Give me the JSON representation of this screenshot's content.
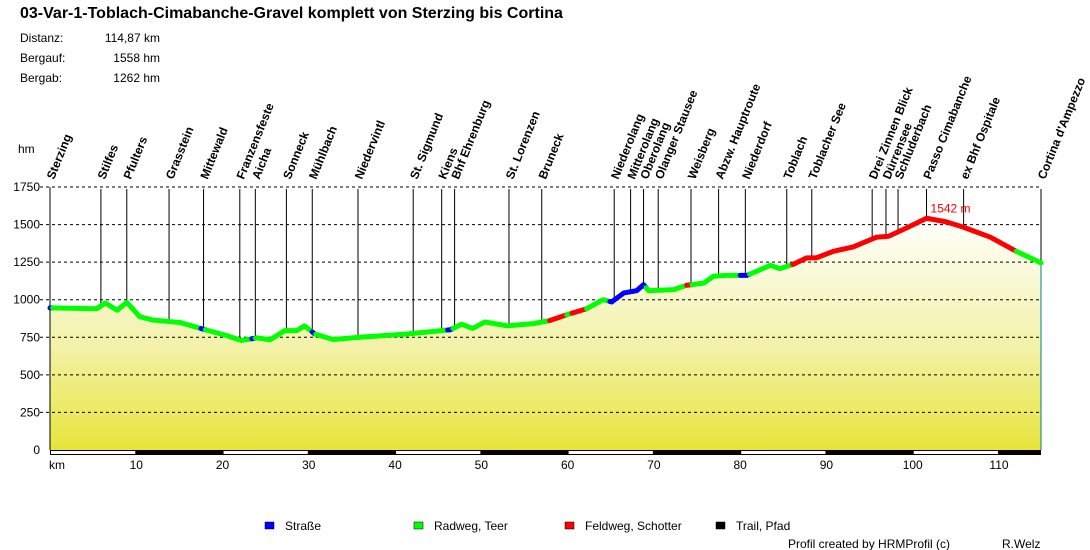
{
  "header": {
    "title": "03-Var-1-Toblach-Cimabanche-Gravel komplett von Sterzing bis Cortina",
    "stats": [
      {
        "label": "Distanz:",
        "value": "114,87 km"
      },
      {
        "label": "Bergauf:",
        "value": "1558 hm"
      },
      {
        "label": "Bergab:",
        "value": "1262 hm"
      }
    ]
  },
  "footer": {
    "credit": "Profil created by HRMProfil (c)",
    "author": "R.Welz"
  },
  "chart_data": {
    "type": "area",
    "xlabel": "km",
    "ylabel": "hm",
    "xlim": [
      0,
      114.87
    ],
    "ylim": [
      0,
      1750
    ],
    "xticks": [
      10,
      20,
      30,
      40,
      50,
      60,
      70,
      80,
      90,
      100,
      110
    ],
    "yticks": [
      0,
      250,
      500,
      750,
      1000,
      1250,
      1500,
      1750
    ],
    "grid": "horizontal-dashed",
    "legend_position": "bottom",
    "max_annotation": {
      "km": 101.6,
      "value": 1542,
      "label": "1542 m"
    },
    "surfaces": [
      {
        "key": "strasse",
        "name": "Straße",
        "color": "#0000ff"
      },
      {
        "key": "radweg",
        "name": "Radweg, Teer",
        "color": "#00ff00"
      },
      {
        "key": "feldweg",
        "name": "Feldweg, Schotter",
        "color": "#ff0000"
      },
      {
        "key": "trail",
        "name": "Trail, Pfad",
        "color": "#000000"
      }
    ],
    "profile": [
      [
        0,
        946
      ],
      [
        5.4,
        940
      ],
      [
        6.4,
        978
      ],
      [
        7.8,
        930
      ],
      [
        8.9,
        983
      ],
      [
        10.4,
        887
      ],
      [
        11.9,
        865
      ],
      [
        15.1,
        848
      ],
      [
        17.7,
        805
      ],
      [
        20.5,
        761
      ],
      [
        22.2,
        729
      ],
      [
        24.0,
        746
      ],
      [
        25.5,
        733
      ],
      [
        27.2,
        794
      ],
      [
        28.6,
        794
      ],
      [
        29.5,
        826
      ],
      [
        30.7,
        772
      ],
      [
        32.8,
        735
      ],
      [
        35.9,
        750
      ],
      [
        41.4,
        772
      ],
      [
        46.4,
        800
      ],
      [
        47.7,
        837
      ],
      [
        49.0,
        809
      ],
      [
        50.4,
        852
      ],
      [
        53.0,
        826
      ],
      [
        56.0,
        841
      ],
      [
        57.9,
        861
      ],
      [
        59.9,
        900
      ],
      [
        62.2,
        940
      ],
      [
        64.1,
        1000
      ],
      [
        65.1,
        985
      ],
      [
        66.5,
        1045
      ],
      [
        68.0,
        1060
      ],
      [
        68.8,
        1100
      ],
      [
        69.4,
        1060
      ],
      [
        72.3,
        1067
      ],
      [
        73.8,
        1096
      ],
      [
        75.8,
        1111
      ],
      [
        76.9,
        1156
      ],
      [
        78.5,
        1162
      ],
      [
        80.8,
        1162
      ],
      [
        83.5,
        1229
      ],
      [
        84.6,
        1207
      ],
      [
        86.1,
        1234
      ],
      [
        87.7,
        1278
      ],
      [
        88.8,
        1278
      ],
      [
        90.8,
        1322
      ],
      [
        93.1,
        1351
      ],
      [
        95.8,
        1416
      ],
      [
        97.2,
        1422
      ],
      [
        99.3,
        1478
      ],
      [
        101.6,
        1542
      ],
      [
        103.9,
        1518
      ],
      [
        105.9,
        1482
      ],
      [
        109.0,
        1416
      ],
      [
        112.0,
        1322
      ],
      [
        114.87,
        1245
      ]
    ],
    "segments": [
      {
        "from": 0,
        "to": 0.3,
        "surface": "strasse"
      },
      {
        "from": 0.3,
        "to": 17.5,
        "surface": "radweg"
      },
      {
        "from": 17.5,
        "to": 18.0,
        "surface": "strasse"
      },
      {
        "from": 18.0,
        "to": 23.4,
        "surface": "radweg"
      },
      {
        "from": 23.4,
        "to": 23.8,
        "surface": "strasse"
      },
      {
        "from": 23.8,
        "to": 30.4,
        "surface": "radweg"
      },
      {
        "from": 30.4,
        "to": 30.8,
        "surface": "strasse"
      },
      {
        "from": 30.8,
        "to": 46.1,
        "surface": "radweg"
      },
      {
        "from": 46.1,
        "to": 46.7,
        "surface": "strasse"
      },
      {
        "from": 46.7,
        "to": 57.9,
        "surface": "radweg"
      },
      {
        "from": 57.9,
        "to": 59.9,
        "surface": "feldweg"
      },
      {
        "from": 59.9,
        "to": 60.5,
        "surface": "radweg"
      },
      {
        "from": 60.5,
        "to": 62.2,
        "surface": "feldweg"
      },
      {
        "from": 62.2,
        "to": 64.9,
        "surface": "radweg"
      },
      {
        "from": 64.9,
        "to": 69.1,
        "surface": "strasse"
      },
      {
        "from": 69.1,
        "to": 73.8,
        "surface": "radweg"
      },
      {
        "from": 73.8,
        "to": 74.4,
        "surface": "feldweg"
      },
      {
        "from": 74.4,
        "to": 80.0,
        "surface": "radweg"
      },
      {
        "from": 80.0,
        "to": 81.1,
        "surface": "strasse"
      },
      {
        "from": 81.1,
        "to": 86.1,
        "surface": "radweg"
      },
      {
        "from": 86.1,
        "to": 112.0,
        "surface": "feldweg"
      },
      {
        "from": 112.0,
        "to": 114.87,
        "surface": "radweg"
      }
    ],
    "waypoints": [
      {
        "name": "Sterzing",
        "km": 0
      },
      {
        "name": "Stilfes",
        "km": 5.9
      },
      {
        "name": "Pfulters",
        "km": 8.9
      },
      {
        "name": "Grasstein",
        "km": 13.8
      },
      {
        "name": "Mittewald",
        "km": 17.8
      },
      {
        "name": "Franzensfeste",
        "km": 22.0
      },
      {
        "name": "Aicha",
        "km": 23.8
      },
      {
        "name": "Sonneck",
        "km": 27.4
      },
      {
        "name": "Mühlbach",
        "km": 30.4
      },
      {
        "name": "Niedervintl",
        "km": 35.7
      },
      {
        "name": "St. Sigmund",
        "km": 42.1
      },
      {
        "name": "Kiens",
        "km": 45.4
      },
      {
        "name": "Bhf Ehrenburg",
        "km": 46.9
      },
      {
        "name": "St. Lorenzen",
        "km": 53.2
      },
      {
        "name": "Bruneck",
        "km": 57.0
      },
      {
        "name": "Niederolang",
        "km": 65.4
      },
      {
        "name": "Mitterolang",
        "km": 67.3
      },
      {
        "name": "Oberolang",
        "km": 68.8
      },
      {
        "name": "Olanger Stausee",
        "km": 70.5
      },
      {
        "name": "Weisberg",
        "km": 74.3
      },
      {
        "name": "Abzw. Hauptroute",
        "km": 77.5
      },
      {
        "name": "Niederdorf",
        "km": 80.6
      },
      {
        "name": "Toblach",
        "km": 85.4
      },
      {
        "name": "Toblacher See",
        "km": 88.3
      },
      {
        "name": "Drei Zinnen Blick",
        "km": 95.3
      },
      {
        "name": "Dürrensee",
        "km": 96.9
      },
      {
        "name": "Schluderbach",
        "km": 98.3
      },
      {
        "name": "Passo Cimabanche",
        "km": 101.6
      },
      {
        "name": "ex Bhf Ospitale",
        "km": 105.9
      },
      {
        "name": "Cortina d'Ampezzo",
        "km": 114.87
      }
    ]
  }
}
